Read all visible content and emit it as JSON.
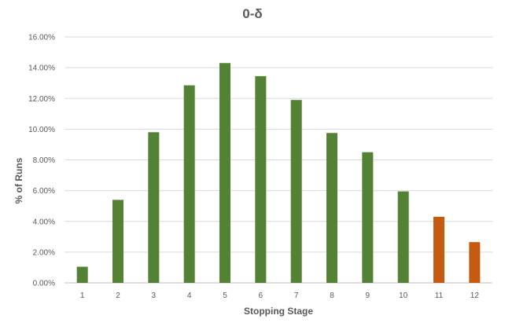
{
  "chart_data": {
    "type": "bar",
    "title": "0-δ",
    "xlabel": "Stopping Stage",
    "ylabel": "% of Runs",
    "categories": [
      "1",
      "2",
      "3",
      "4",
      "5",
      "6",
      "7",
      "8",
      "9",
      "10",
      "11",
      "12"
    ],
    "values": [
      1.05,
      5.4,
      9.8,
      12.85,
      14.3,
      13.45,
      11.9,
      9.75,
      8.5,
      5.95,
      4.3,
      2.65
    ],
    "bar_colors": [
      "#548235",
      "#548235",
      "#548235",
      "#548235",
      "#548235",
      "#548235",
      "#548235",
      "#548235",
      "#548235",
      "#548235",
      "#C55A11",
      "#C55A11"
    ],
    "ylim": [
      0,
      16
    ],
    "y_ticks": [
      "0.00%",
      "2.00%",
      "4.00%",
      "6.00%",
      "8.00%",
      "10.00%",
      "12.00%",
      "14.00%",
      "16.00%"
    ],
    "grid": true,
    "legend": "none"
  }
}
